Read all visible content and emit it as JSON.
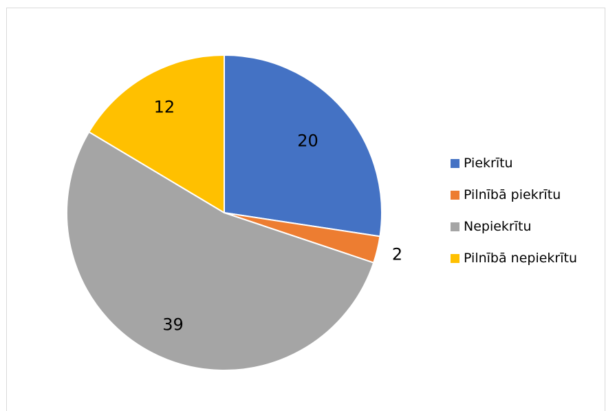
{
  "chart_data": {
    "type": "pie",
    "title": "",
    "categories": [
      "Piekrītu",
      "Pilnībā piekrītu",
      "Nepiekrītu",
      "Pilnībā nepiekrītu"
    ],
    "values": [
      20,
      2,
      39,
      12
    ],
    "colors": [
      "#4472c4",
      "#ed7d31",
      "#a5a5a5",
      "#ffc000"
    ],
    "data_labels": [
      "20",
      "2",
      "39",
      "12"
    ],
    "start_angle_deg": 0,
    "direction": "clockwise",
    "legend_position": "right"
  }
}
